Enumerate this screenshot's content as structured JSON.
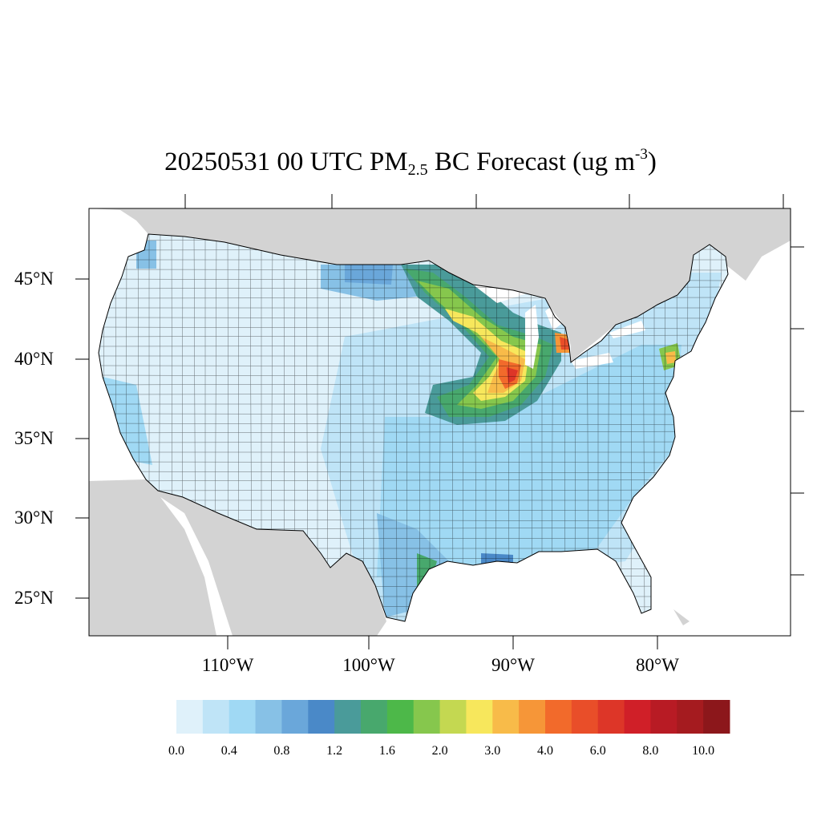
{
  "title": {
    "prefix": "20250531 00 UTC PM",
    "sub": "2.5",
    "middle": " BC Forecast (ug m",
    "sup": "-3",
    "suffix": ")"
  },
  "lat_labels": [
    "45°N",
    "40°N",
    "35°N",
    "30°N",
    "25°N"
  ],
  "lon_labels": [
    "110°W",
    "100°W",
    "90°W",
    "80°W"
  ],
  "colorbar": {
    "colors": [
      "#dff1fa",
      "#bfe4f7",
      "#a0d9f4",
      "#87c1e6",
      "#6aa7da",
      "#4a89c8",
      "#4a9b9a",
      "#48a86d",
      "#4db849",
      "#86c74d",
      "#c4d851",
      "#f7e75c",
      "#f8bb49",
      "#f69638",
      "#f26a2b",
      "#e94e29",
      "#dd3628",
      "#d01f28",
      "#b81b24",
      "#a51b1f",
      "#8c171b"
    ],
    "tick_labels": [
      "0.0",
      "0.4",
      "0.8",
      "1.2",
      "1.6",
      "2.0",
      "3.0",
      "4.0",
      "6.0",
      "8.0",
      "10.0"
    ],
    "bins": [
      "0.0",
      "0.2",
      "0.4",
      "0.6",
      "0.8",
      "1.0",
      "1.2",
      "1.4",
      "1.6",
      "1.8",
      "2.0",
      "2.5",
      "3.0",
      "3.5",
      "4.0",
      "5.0",
      "6.0",
      "7.0",
      "8.0",
      "9.0",
      "10.0",
      "+"
    ]
  },
  "map": {
    "land_outside_color": "#d3d3d3",
    "water_color": "#ffffff",
    "base_color": "#dff1fa",
    "border_color": "#000000"
  }
}
